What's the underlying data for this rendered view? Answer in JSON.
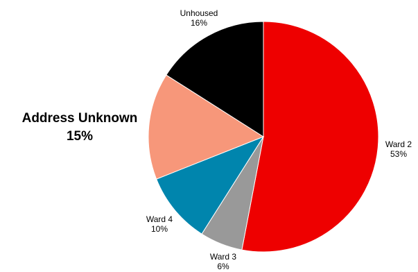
{
  "chart_data": {
    "type": "pie",
    "title": "",
    "start_angle_deg": 0,
    "direction": "clockwise",
    "slices": [
      {
        "name": "Ward 2",
        "value": 53,
        "value_label": "53%",
        "color": "#ee0000"
      },
      {
        "name": "Ward 3",
        "value": 6,
        "value_label": "6%",
        "color": "#999999"
      },
      {
        "name": "Ward 4",
        "value": 10,
        "value_label": "10%",
        "color": "#0085ad"
      },
      {
        "name": "Address Unknown",
        "value": 15,
        "value_label": "15%",
        "color": "#f7977a"
      },
      {
        "name": "Unhoused",
        "value": 16,
        "value_label": "16%",
        "color": "#000000"
      }
    ]
  }
}
